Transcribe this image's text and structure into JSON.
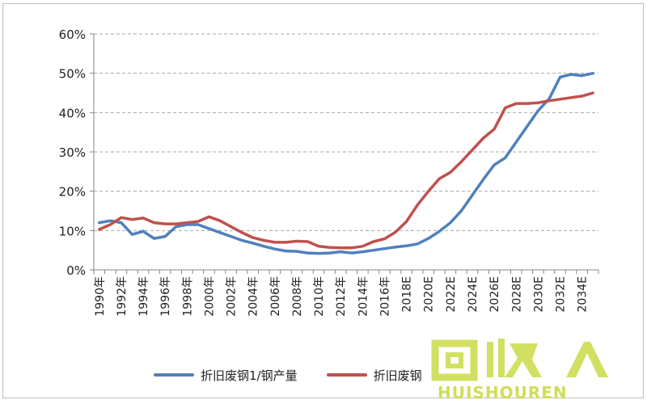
{
  "chart_data": {
    "type": "line",
    "title": "",
    "xlabel": "",
    "ylabel": "",
    "x": [
      "1990年",
      "1991年",
      "1992年",
      "1993年",
      "1994年",
      "1995年",
      "1996年",
      "1997年",
      "1998年",
      "1999年",
      "2000年",
      "2001年",
      "2002年",
      "2003年",
      "2004年",
      "2005年",
      "2006年",
      "2007年",
      "2008年",
      "2009年",
      "2010年",
      "2011年",
      "2012年",
      "2013年",
      "2014年",
      "2015年",
      "2016年",
      "2017年",
      "2018E",
      "2019E",
      "2020E",
      "2021E",
      "2022E",
      "2023E",
      "2024E",
      "2025E",
      "2026E",
      "2027E",
      "2028E",
      "2029E",
      "2030E",
      "2031E",
      "2032E",
      "2033E",
      "2034E",
      "2035E"
    ],
    "xticks": [
      "1990年",
      "1992年",
      "1994年",
      "1996年",
      "1998年",
      "2000年",
      "2002年",
      "2004年",
      "2006年",
      "2008年",
      "2010年",
      "2012年",
      "2014年",
      "2016年",
      "2018E",
      "2020E",
      "2022E",
      "2024E",
      "2026E",
      "2028E",
      "2030E",
      "2032E",
      "2034E"
    ],
    "yticks": [
      "0%",
      "10%",
      "20%",
      "30%",
      "40%",
      "50%",
      "60%"
    ],
    "ylim": [
      0,
      60
    ],
    "grid": true,
    "legend_position": "bottom",
    "series": [
      {
        "name": "折旧废钢1/钢产量",
        "color": "#4f81bd",
        "values": [
          12.0,
          12.5,
          12.0,
          9.0,
          9.8,
          8.0,
          8.5,
          11.0,
          11.5,
          11.5,
          10.5,
          9.5,
          8.5,
          7.5,
          6.8,
          6.0,
          5.3,
          4.8,
          4.7,
          4.3,
          4.2,
          4.3,
          4.6,
          4.3,
          4.6,
          5.0,
          5.4,
          5.8,
          6.1,
          6.6,
          8.0,
          9.8,
          12.0,
          15.0,
          19.0,
          23.0,
          26.7,
          28.5,
          32.5,
          36.5,
          40.5,
          43.5,
          49.0,
          49.7,
          49.4,
          50.0
        ]
      },
      {
        "name": "折旧废钢",
        "color": "#c0504d",
        "values": [
          10.3,
          11.5,
          13.3,
          12.8,
          13.2,
          12.0,
          11.7,
          11.7,
          12.0,
          12.3,
          13.5,
          12.5,
          11.0,
          9.5,
          8.2,
          7.5,
          7.0,
          7.0,
          7.3,
          7.2,
          6.0,
          5.7,
          5.6,
          5.6,
          6.0,
          7.2,
          7.9,
          9.6,
          12.3,
          16.5,
          20.0,
          23.2,
          24.8,
          27.5,
          30.5,
          33.5,
          35.8,
          41.2,
          42.3,
          42.3,
          42.5,
          43.0,
          43.4,
          43.8,
          44.2,
          45.0
        ]
      }
    ]
  },
  "watermark": {
    "logo_text": "回收",
    "domain": "HUISHOUREN",
    "color": "#c7d93b"
  }
}
